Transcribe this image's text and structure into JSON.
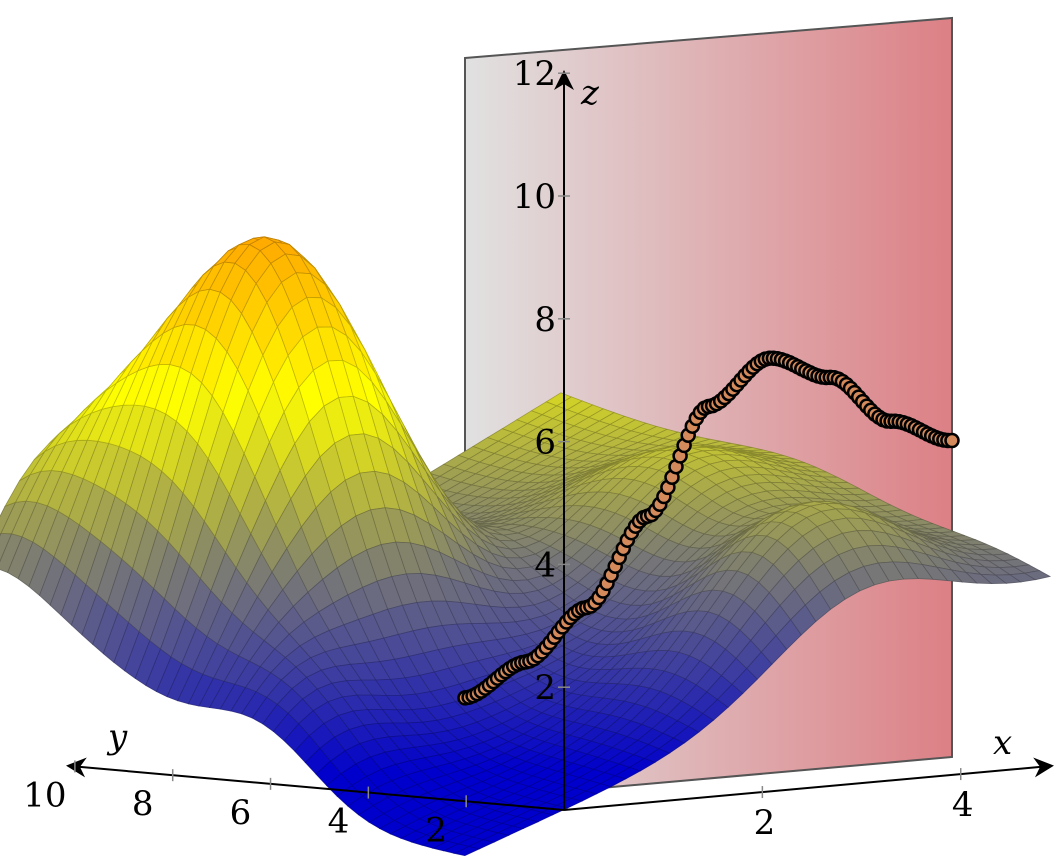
{
  "chart_data": {
    "type": "surface",
    "axes": {
      "x": {
        "label": "x",
        "ticks": [
          "2",
          "4"
        ],
        "range": [
          0,
          4
        ]
      },
      "y": {
        "label": "y",
        "ticks": [
          "2",
          "4",
          "6",
          "8",
          "10"
        ],
        "range": [
          0,
          10
        ]
      },
      "z": {
        "label": "z",
        "ticks": [
          "2",
          "4",
          "6",
          "8",
          "10",
          "12"
        ],
        "range": [
          0,
          12
        ]
      }
    },
    "colormap": [
      "#0000cc",
      "#777777",
      "#ffff00",
      "#ff9900",
      "#ff0000"
    ],
    "plane_gradient": [
      "#dcdcdc",
      "#d66a70"
    ],
    "marker_color": "#d48a5a",
    "curve": {
      "description_free": true,
      "x": [
        0,
        0.5,
        1.0,
        1.5,
        2.0,
        2.5,
        3.0,
        3.5,
        4.0
      ],
      "y": [
        0,
        0,
        0,
        0,
        0,
        0,
        0,
        0,
        0
      ],
      "z": [
        1.5,
        2.0,
        2.8,
        4.2,
        5.9,
        6.6,
        6.2,
        5.4,
        5.0
      ]
    }
  }
}
